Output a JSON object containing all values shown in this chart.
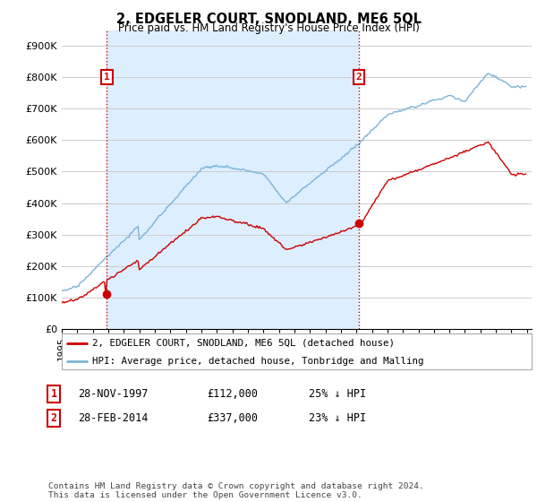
{
  "title": "2, EDGELER COURT, SNODLAND, ME6 5QL",
  "subtitle": "Price paid vs. HM Land Registry's House Price Index (HPI)",
  "ylim": [
    0,
    950000
  ],
  "yticks": [
    0,
    100000,
    200000,
    300000,
    400000,
    500000,
    600000,
    700000,
    800000,
    900000
  ],
  "ytick_labels": [
    "£0",
    "£100K",
    "£200K",
    "£300K",
    "£400K",
    "£500K",
    "£600K",
    "£700K",
    "£800K",
    "£900K"
  ],
  "sale1_date": "28-NOV-1997",
  "sale1_price": 112000,
  "sale1_label": "1",
  "sale1_pct": "25% ↓ HPI",
  "sale1_x": 1997.91,
  "sale2_date": "28-FEB-2014",
  "sale2_price": 337000,
  "sale2_label": "2",
  "sale2_pct": "23% ↓ HPI",
  "sale2_x": 2014.16,
  "hpi_color": "#7ab4d8",
  "price_color": "#cc0000",
  "vline_color": "#cc0000",
  "vline_style": ":",
  "grid_color": "#cccccc",
  "shade_color": "#ddeeff",
  "legend1_label": "2, EDGELER COURT, SNODLAND, ME6 5QL (detached house)",
  "legend2_label": "HPI: Average price, detached house, Tonbridge and Malling",
  "footnote": "Contains HM Land Registry data © Crown copyright and database right 2024.\nThis data is licensed under the Open Government Licence v3.0.",
  "box_color": "#cc0000",
  "background_color": "#ffffff",
  "fig_width": 6.0,
  "fig_height": 5.6
}
